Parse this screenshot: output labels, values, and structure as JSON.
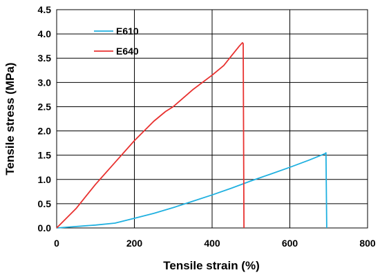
{
  "chart_data": {
    "type": "line",
    "xlabel": "Tensile strain (%)",
    "ylabel": "Tensile stress  (MPa)",
    "xlim": [
      0,
      800
    ],
    "ylim": [
      0,
      4.5
    ],
    "xticks": [
      0,
      200,
      400,
      600,
      800
    ],
    "yticks": [
      0.0,
      0.5,
      1.0,
      1.5,
      2.0,
      2.5,
      3.0,
      3.5,
      4.0,
      4.5
    ],
    "ytick_labels": [
      "0.0",
      "0.5",
      "1.0",
      "1.5",
      "2.0",
      "2.5",
      "3.0",
      "3.5",
      "4.0",
      "4.5"
    ],
    "grid": true,
    "legend_position": "top-left",
    "series": [
      {
        "name": "E610",
        "color": "#1fb0e0",
        "x": [
          0,
          50,
          100,
          150,
          200,
          250,
          300,
          350,
          400,
          450,
          500,
          550,
          600,
          650,
          690,
          693,
          695
        ],
        "y": [
          0,
          0.03,
          0.06,
          0.1,
          0.2,
          0.3,
          0.42,
          0.55,
          0.68,
          0.82,
          0.97,
          1.11,
          1.25,
          1.4,
          1.53,
          1.55,
          0
        ]
      },
      {
        "name": "E640",
        "color": "#e8312f",
        "x": [
          0,
          50,
          100,
          150,
          200,
          250,
          280,
          300,
          350,
          400,
          430,
          450,
          470,
          478,
          480,
          482
        ],
        "y": [
          0,
          0.4,
          0.9,
          1.35,
          1.8,
          2.2,
          2.4,
          2.5,
          2.85,
          3.15,
          3.35,
          3.55,
          3.75,
          3.82,
          3.8,
          0
        ]
      }
    ]
  }
}
